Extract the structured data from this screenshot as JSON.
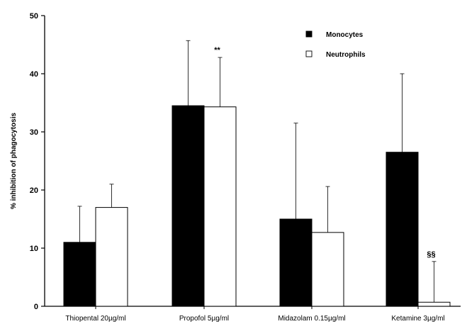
{
  "chart_data": {
    "type": "bar",
    "title": "",
    "xlabel": "",
    "ylabel": "% inhibition of phagocytosis",
    "ylim": [
      0,
      50
    ],
    "yticks": [
      0,
      10,
      20,
      30,
      40,
      50
    ],
    "grid": false,
    "legend_position": "top-right",
    "categories": [
      "Thiopental 20µg/ml",
      "Propofol 5µg/ml",
      "Midazolam 0.15µg/ml",
      "Ketamine 3µg/ml"
    ],
    "series": [
      {
        "name": "Monocytes",
        "color": "#000000",
        "values": [
          11,
          34.5,
          15,
          26.5
        ],
        "error": [
          6.2,
          11.2,
          16.5,
          13.5
        ]
      },
      {
        "name": "Neutrophils",
        "color": "#ffffff",
        "values": [
          17,
          34.3,
          12.7,
          0.7
        ],
        "error": [
          4,
          8.5,
          7.9,
          7
        ]
      }
    ],
    "annotations": [
      {
        "text": "**",
        "category_index": 1,
        "series_index": 1
      },
      {
        "text": "§§",
        "category_index": 3,
        "series_index": 1
      }
    ]
  }
}
